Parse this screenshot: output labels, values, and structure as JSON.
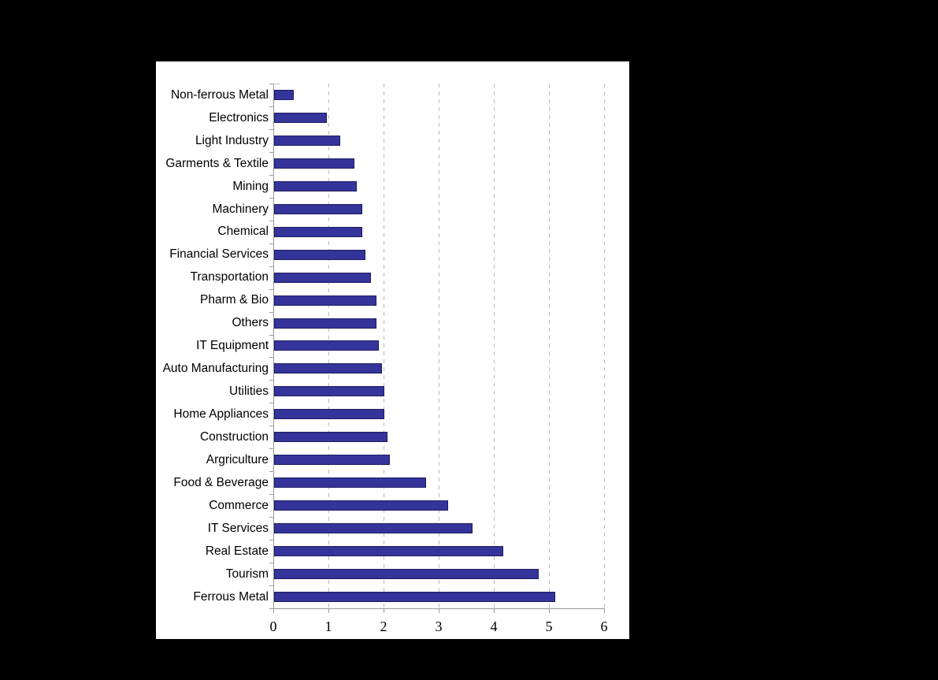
{
  "page": {
    "background_color": "#000000",
    "panel_background_color": "#ffffff"
  },
  "chart_data": {
    "type": "bar",
    "orientation": "horizontal",
    "title": "",
    "xlabel": "",
    "ylabel": "",
    "categories": [
      "Non-ferrous Metal",
      "Electronics",
      "Light Industry",
      "Garments & Textile",
      "Mining",
      "Machinery",
      "Chemical",
      "Financial Services",
      "Transportation",
      "Pharm & Bio",
      "Others",
      "IT Equipment",
      "Auto Manufacturing",
      "Utilities",
      "Home Appliances",
      "Construction",
      "Argriculture",
      "Food & Beverage",
      "Commerce",
      "IT Services",
      "Real Estate",
      "Tourism",
      "Ferrous Metal"
    ],
    "values": [
      0.35,
      0.95,
      1.2,
      1.45,
      1.5,
      1.6,
      1.6,
      1.65,
      1.75,
      1.85,
      1.85,
      1.9,
      1.95,
      2.0,
      2.0,
      2.05,
      2.1,
      2.75,
      3.15,
      3.6,
      4.15,
      4.8,
      5.1
    ],
    "xlim": [
      0,
      6
    ],
    "x_tick_labels": [
      "0",
      "1",
      "2",
      "3",
      "4",
      "5",
      "6"
    ],
    "grid": "vertical-dashed-at-integers",
    "legend": "none",
    "colors": {
      "bar_fill": "#34349a",
      "bar_border": "#1d1d60",
      "gridline": "#bbbbbb",
      "axis_line": "#9a9a9a",
      "tick_mark": "#9a9a9a",
      "corner_segment": "#c9c9c9",
      "label_text": "#000000"
    }
  }
}
